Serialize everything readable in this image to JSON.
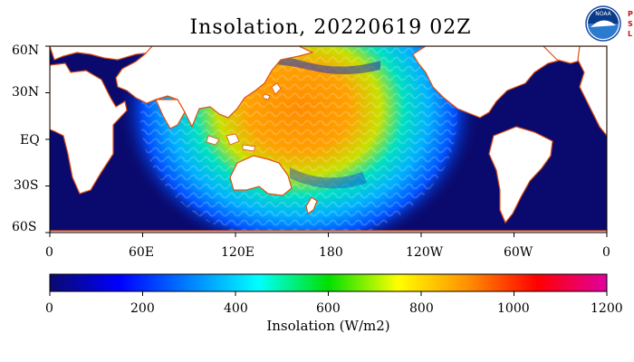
{
  "title": "Insolation, 20220619 02Z",
  "logos": {
    "noaa": "NOAA",
    "psl": [
      "P",
      "S",
      "L"
    ]
  },
  "map": {
    "lat_ticks": [
      "60N",
      "30N",
      "EQ",
      "30S",
      "60S"
    ],
    "lon_ticks": [
      "0",
      "60E",
      "120E",
      "180",
      "120W",
      "60W",
      "0"
    ],
    "sun_subsolar_lon": "150E",
    "colors": {
      "ocean_dark": "#0a0a6e",
      "land": "#ffffff",
      "coast": "#e05010"
    }
  },
  "colorbar": {
    "title": "Insolation (W/m2)",
    "ticks": [
      "0",
      "200",
      "400",
      "600",
      "800",
      "1000",
      "1200"
    ],
    "range": [
      0,
      1200
    ],
    "colors": [
      "#0a0a6e",
      "#0000ff",
      "#0080ff",
      "#00ffff",
      "#00e000",
      "#ffff00",
      "#ff9000",
      "#ff0000",
      "#e000a0"
    ]
  }
}
